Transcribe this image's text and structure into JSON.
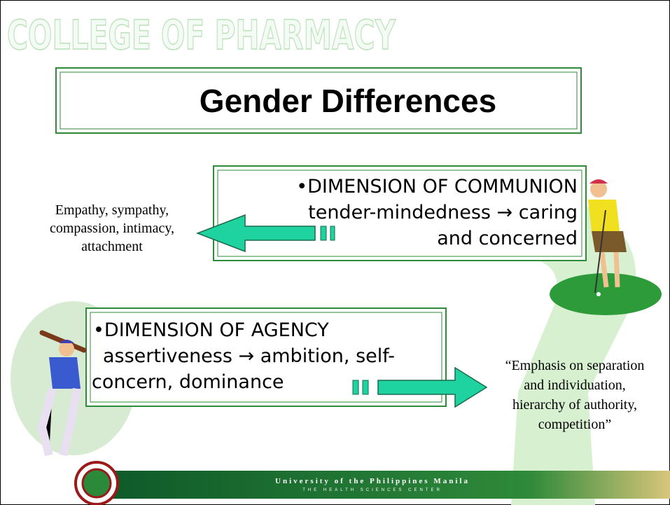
{
  "header": {
    "title": "COLLEGE OF PHARMACY"
  },
  "slide": {
    "title": "Gender Differences"
  },
  "boxes": [
    {
      "lines": [
        "•DIMENSION OF COMMUNION",
        "tender-mindedness → caring",
        "and concerned"
      ]
    },
    {
      "lines": [
        "•DIMENSION OF AGENCY",
        "assertiveness → ambition, self-",
        "concern, dominance"
      ]
    }
  ],
  "notes": [
    {
      "lines": [
        "Empathy, sympathy,",
        "compassion, intimacy,",
        "attachment"
      ]
    },
    {
      "lines": [
        "“Emphasis on separation",
        "and individuation,",
        "hierarchy of authority,",
        "competition”"
      ]
    }
  ],
  "footer": {
    "university": "University of the Philippines Manila",
    "subtitle": "THE HEALTH SCIENCES CENTER"
  }
}
